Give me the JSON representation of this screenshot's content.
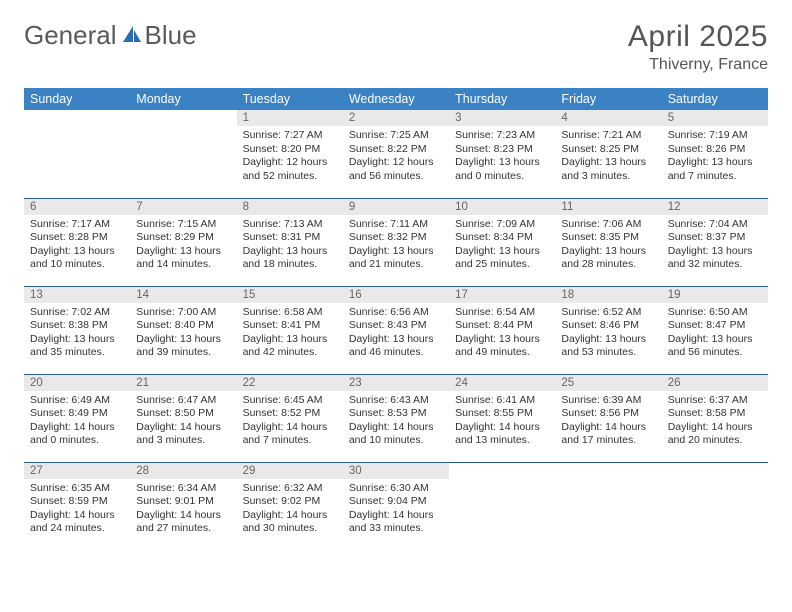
{
  "brand": {
    "part1": "General",
    "part2": "Blue",
    "logo_color": "#2a6db0"
  },
  "title": "April 2025",
  "location": "Thiverny, France",
  "colors": {
    "header_bg": "#3b82c4",
    "header_text": "#ffffff",
    "daynum_bg": "#e9e9e9",
    "row_border": "#2a5d8f"
  },
  "weekdays": [
    "Sunday",
    "Monday",
    "Tuesday",
    "Wednesday",
    "Thursday",
    "Friday",
    "Saturday"
  ],
  "weeks": [
    [
      {
        "empty": true
      },
      {
        "empty": true
      },
      {
        "day": "1",
        "sunrise": "Sunrise: 7:27 AM",
        "sunset": "Sunset: 8:20 PM",
        "daylight": "Daylight: 12 hours and 52 minutes."
      },
      {
        "day": "2",
        "sunrise": "Sunrise: 7:25 AM",
        "sunset": "Sunset: 8:22 PM",
        "daylight": "Daylight: 12 hours and 56 minutes."
      },
      {
        "day": "3",
        "sunrise": "Sunrise: 7:23 AM",
        "sunset": "Sunset: 8:23 PM",
        "daylight": "Daylight: 13 hours and 0 minutes."
      },
      {
        "day": "4",
        "sunrise": "Sunrise: 7:21 AM",
        "sunset": "Sunset: 8:25 PM",
        "daylight": "Daylight: 13 hours and 3 minutes."
      },
      {
        "day": "5",
        "sunrise": "Sunrise: 7:19 AM",
        "sunset": "Sunset: 8:26 PM",
        "daylight": "Daylight: 13 hours and 7 minutes."
      }
    ],
    [
      {
        "day": "6",
        "sunrise": "Sunrise: 7:17 AM",
        "sunset": "Sunset: 8:28 PM",
        "daylight": "Daylight: 13 hours and 10 minutes."
      },
      {
        "day": "7",
        "sunrise": "Sunrise: 7:15 AM",
        "sunset": "Sunset: 8:29 PM",
        "daylight": "Daylight: 13 hours and 14 minutes."
      },
      {
        "day": "8",
        "sunrise": "Sunrise: 7:13 AM",
        "sunset": "Sunset: 8:31 PM",
        "daylight": "Daylight: 13 hours and 18 minutes."
      },
      {
        "day": "9",
        "sunrise": "Sunrise: 7:11 AM",
        "sunset": "Sunset: 8:32 PM",
        "daylight": "Daylight: 13 hours and 21 minutes."
      },
      {
        "day": "10",
        "sunrise": "Sunrise: 7:09 AM",
        "sunset": "Sunset: 8:34 PM",
        "daylight": "Daylight: 13 hours and 25 minutes."
      },
      {
        "day": "11",
        "sunrise": "Sunrise: 7:06 AM",
        "sunset": "Sunset: 8:35 PM",
        "daylight": "Daylight: 13 hours and 28 minutes."
      },
      {
        "day": "12",
        "sunrise": "Sunrise: 7:04 AM",
        "sunset": "Sunset: 8:37 PM",
        "daylight": "Daylight: 13 hours and 32 minutes."
      }
    ],
    [
      {
        "day": "13",
        "sunrise": "Sunrise: 7:02 AM",
        "sunset": "Sunset: 8:38 PM",
        "daylight": "Daylight: 13 hours and 35 minutes."
      },
      {
        "day": "14",
        "sunrise": "Sunrise: 7:00 AM",
        "sunset": "Sunset: 8:40 PM",
        "daylight": "Daylight: 13 hours and 39 minutes."
      },
      {
        "day": "15",
        "sunrise": "Sunrise: 6:58 AM",
        "sunset": "Sunset: 8:41 PM",
        "daylight": "Daylight: 13 hours and 42 minutes."
      },
      {
        "day": "16",
        "sunrise": "Sunrise: 6:56 AM",
        "sunset": "Sunset: 8:43 PM",
        "daylight": "Daylight: 13 hours and 46 minutes."
      },
      {
        "day": "17",
        "sunrise": "Sunrise: 6:54 AM",
        "sunset": "Sunset: 8:44 PM",
        "daylight": "Daylight: 13 hours and 49 minutes."
      },
      {
        "day": "18",
        "sunrise": "Sunrise: 6:52 AM",
        "sunset": "Sunset: 8:46 PM",
        "daylight": "Daylight: 13 hours and 53 minutes."
      },
      {
        "day": "19",
        "sunrise": "Sunrise: 6:50 AM",
        "sunset": "Sunset: 8:47 PM",
        "daylight": "Daylight: 13 hours and 56 minutes."
      }
    ],
    [
      {
        "day": "20",
        "sunrise": "Sunrise: 6:49 AM",
        "sunset": "Sunset: 8:49 PM",
        "daylight": "Daylight: 14 hours and 0 minutes."
      },
      {
        "day": "21",
        "sunrise": "Sunrise: 6:47 AM",
        "sunset": "Sunset: 8:50 PM",
        "daylight": "Daylight: 14 hours and 3 minutes."
      },
      {
        "day": "22",
        "sunrise": "Sunrise: 6:45 AM",
        "sunset": "Sunset: 8:52 PM",
        "daylight": "Daylight: 14 hours and 7 minutes."
      },
      {
        "day": "23",
        "sunrise": "Sunrise: 6:43 AM",
        "sunset": "Sunset: 8:53 PM",
        "daylight": "Daylight: 14 hours and 10 minutes."
      },
      {
        "day": "24",
        "sunrise": "Sunrise: 6:41 AM",
        "sunset": "Sunset: 8:55 PM",
        "daylight": "Daylight: 14 hours and 13 minutes."
      },
      {
        "day": "25",
        "sunrise": "Sunrise: 6:39 AM",
        "sunset": "Sunset: 8:56 PM",
        "daylight": "Daylight: 14 hours and 17 minutes."
      },
      {
        "day": "26",
        "sunrise": "Sunrise: 6:37 AM",
        "sunset": "Sunset: 8:58 PM",
        "daylight": "Daylight: 14 hours and 20 minutes."
      }
    ],
    [
      {
        "day": "27",
        "sunrise": "Sunrise: 6:35 AM",
        "sunset": "Sunset: 8:59 PM",
        "daylight": "Daylight: 14 hours and 24 minutes."
      },
      {
        "day": "28",
        "sunrise": "Sunrise: 6:34 AM",
        "sunset": "Sunset: 9:01 PM",
        "daylight": "Daylight: 14 hours and 27 minutes."
      },
      {
        "day": "29",
        "sunrise": "Sunrise: 6:32 AM",
        "sunset": "Sunset: 9:02 PM",
        "daylight": "Daylight: 14 hours and 30 minutes."
      },
      {
        "day": "30",
        "sunrise": "Sunrise: 6:30 AM",
        "sunset": "Sunset: 9:04 PM",
        "daylight": "Daylight: 14 hours and 33 minutes."
      },
      {
        "empty": true
      },
      {
        "empty": true
      },
      {
        "empty": true
      }
    ]
  ]
}
